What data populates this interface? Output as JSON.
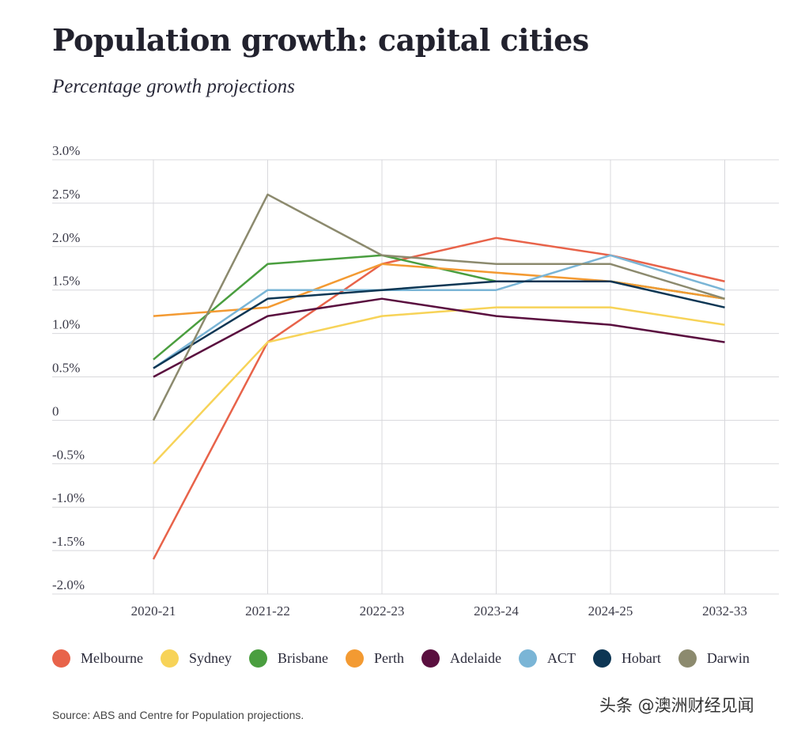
{
  "title": "Population growth: capital cities",
  "subtitle": "Percentage growth projections",
  "source": "Source: ABS and Centre for Population projections.",
  "watermark": "头条 @澳洲财经见闻",
  "chart_data": {
    "type": "line",
    "title": "Population growth: capital cities",
    "subtitle": "Percentage growth projections",
    "x": [
      "2020-21",
      "2021-22",
      "2022-23",
      "2023-24",
      "2024-25",
      "2032-33"
    ],
    "ylim": [
      -2.0,
      3.0
    ],
    "yticks": [
      3.0,
      2.5,
      2.0,
      1.5,
      1.0,
      0.5,
      0,
      -0.5,
      -1.0,
      -1.5,
      -2.0
    ],
    "ytick_labels": [
      "3.0%",
      "2.5%",
      "2.0%",
      "1.5%",
      "1.0%",
      "0.5%",
      "0",
      "-0.5%",
      "-1.0%",
      "-1.5%",
      "-2.0%"
    ],
    "grid": true,
    "legend_position": "bottom",
    "series": [
      {
        "name": "Melbourne",
        "color": "#e8634a",
        "values": [
          -1.6,
          0.9,
          1.8,
          2.1,
          1.9,
          1.6
        ]
      },
      {
        "name": "Sydney",
        "color": "#f7d358",
        "values": [
          -0.5,
          0.9,
          1.2,
          1.3,
          1.3,
          1.1
        ]
      },
      {
        "name": "Brisbane",
        "color": "#4a9e3f",
        "values": [
          0.7,
          1.8,
          1.9,
          1.6,
          1.6,
          1.4
        ]
      },
      {
        "name": "Perth",
        "color": "#f39a32",
        "values": [
          1.2,
          1.3,
          1.8,
          1.7,
          1.6,
          1.4
        ]
      },
      {
        "name": "Adelaide",
        "color": "#5a0f3f",
        "values": [
          0.5,
          1.2,
          1.4,
          1.2,
          1.1,
          0.9
        ]
      },
      {
        "name": "ACT",
        "color": "#7ab5d6",
        "values": [
          0.6,
          1.5,
          1.5,
          1.5,
          1.9,
          1.5
        ]
      },
      {
        "name": "Hobart",
        "color": "#0d3654",
        "values": [
          0.6,
          1.4,
          1.5,
          1.6,
          1.6,
          1.3
        ]
      },
      {
        "name": "Darwin",
        "color": "#8c8a6e",
        "values": [
          0.0,
          2.6,
          1.9,
          1.8,
          1.8,
          1.4
        ]
      }
    ]
  }
}
